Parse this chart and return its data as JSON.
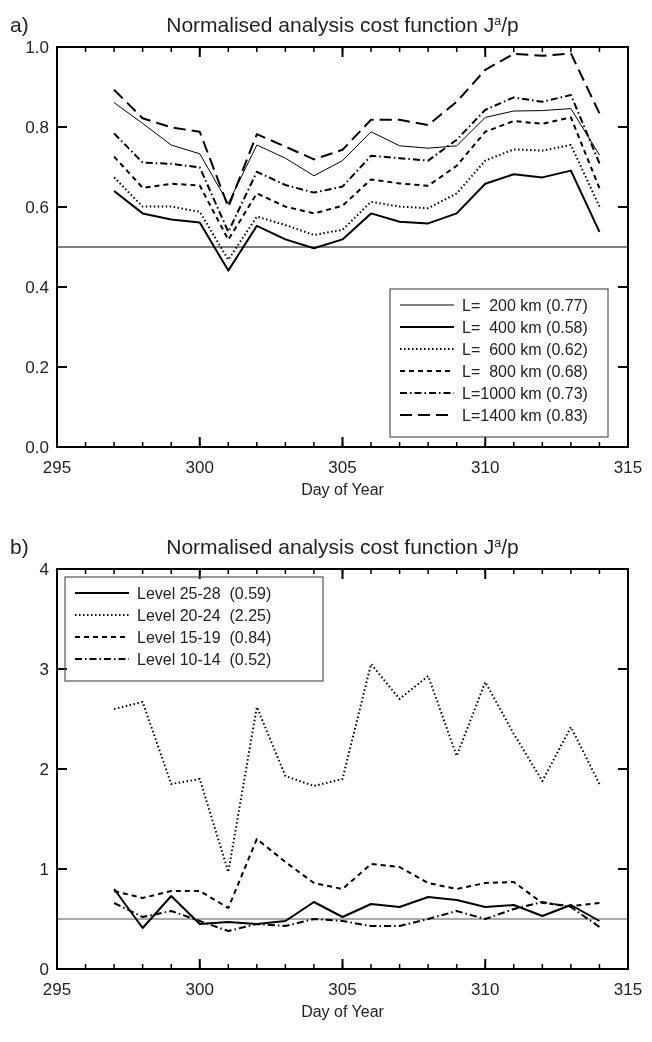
{
  "chart_data": [
    {
      "type": "line",
      "title": "Normalised analysis cost function J$^{a}$/p",
      "xlabel": "Day of Year",
      "annotations": [
        "a)"
      ],
      "x": [
        297,
        298,
        299,
        300,
        301,
        302,
        303,
        304,
        305,
        306,
        307,
        308,
        309,
        310,
        311,
        312,
        313,
        314
      ],
      "xlim": [
        295,
        315
      ],
      "xticks": [
        295,
        300,
        305,
        310,
        315
      ],
      "ylim": [
        0,
        1
      ],
      "yticks": [
        {
          "value": 0,
          "label": "0.0"
        },
        0.2,
        0.4,
        0.6,
        0.8,
        {
          "value": 1,
          "label": "1.0"
        }
      ],
      "ref_lines": [
        {
          "axis": "y",
          "value": 0.5,
          "color": "#000000"
        }
      ],
      "legend": "bottom right",
      "grid": false,
      "marker": "none",
      "series": [
        {
          "name": "L=  200 km (0.77)",
          "color": "#000000",
          "line_style": "solid",
          "values": [
            0.861,
            0.809,
            0.755,
            0.733,
            0.609,
            0.755,
            0.722,
            0.678,
            0.716,
            0.788,
            0.753,
            0.747,
            0.753,
            0.824,
            0.84,
            0.841,
            0.846,
            0.73
          ]
        },
        {
          "name": "L=  400 km (0.58)",
          "color": "#000000",
          "line_style": "solid",
          "values": [
            0.64,
            0.584,
            0.569,
            0.561,
            0.441,
            0.553,
            0.519,
            0.497,
            0.519,
            0.584,
            0.563,
            0.559,
            0.584,
            0.658,
            0.682,
            0.674,
            0.691,
            0.538
          ]
        },
        {
          "name": "L=  600 km (0.62)",
          "color": "#000000",
          "line_style": "dotted",
          "values": [
            0.674,
            0.601,
            0.601,
            0.588,
            0.468,
            0.576,
            0.555,
            0.53,
            0.543,
            0.613,
            0.601,
            0.597,
            0.634,
            0.716,
            0.744,
            0.741,
            0.755,
            0.601
          ]
        },
        {
          "name": "L=  800 km (0.68)",
          "color": "#000000",
          "line_style": "dashed",
          "values": [
            0.726,
            0.648,
            0.658,
            0.654,
            0.518,
            0.634,
            0.601,
            0.584,
            0.603,
            0.669,
            0.659,
            0.653,
            0.703,
            0.788,
            0.815,
            0.808,
            0.824,
            0.647
          ]
        },
        {
          "name": "L=1000 km (0.73)",
          "color": "#000000",
          "line_style": "dashdot",
          "values": [
            0.784,
            0.711,
            0.708,
            0.699,
            0.538,
            0.688,
            0.655,
            0.636,
            0.651,
            0.728,
            0.722,
            0.716,
            0.768,
            0.843,
            0.874,
            0.863,
            0.88,
            0.709
          ]
        },
        {
          "name": "L=1400 km (0.83)",
          "color": "#000000",
          "line_style": "longdash",
          "values": [
            0.893,
            0.822,
            0.799,
            0.788,
            0.6,
            0.782,
            0.751,
            0.719,
            0.743,
            0.818,
            0.818,
            0.805,
            0.863,
            0.943,
            0.983,
            0.978,
            0.984,
            0.834
          ]
        }
      ]
    },
    {
      "type": "line",
      "title": "Normalised analysis cost function J$^{a}$/p",
      "xlabel": "Day of Year",
      "annotations": [
        "b)"
      ],
      "x": [
        297,
        298,
        299,
        300,
        301,
        302,
        303,
        304,
        305,
        306,
        307,
        308,
        309,
        310,
        311,
        312,
        313,
        314
      ],
      "xlim": [
        295,
        315
      ],
      "xticks": [
        295,
        300,
        305,
        310,
        315
      ],
      "ylim": [
        0,
        4
      ],
      "yticks": [
        0,
        1,
        2,
        3,
        4
      ],
      "ref_lines": [
        {
          "axis": "y",
          "value": 0.5,
          "color": "#555555"
        }
      ],
      "legend": "top left",
      "grid": false,
      "marker": "none",
      "series": [
        {
          "name": "Level 25-28  (0.59)",
          "color": "#000000",
          "line_style": "solid",
          "values": [
            0.8,
            0.41,
            0.73,
            0.45,
            0.47,
            0.45,
            0.48,
            0.67,
            0.52,
            0.65,
            0.62,
            0.72,
            0.69,
            0.62,
            0.64,
            0.53,
            0.64,
            0.48
          ]
        },
        {
          "name": "Level 20-24  (2.25)",
          "color": "#000000",
          "line_style": "dotted",
          "values": [
            2.6,
            2.67,
            1.85,
            1.9,
            0.97,
            2.62,
            1.93,
            1.83,
            1.9,
            3.05,
            2.7,
            2.93,
            2.13,
            2.87,
            2.35,
            1.88,
            2.42,
            1.85
          ]
        },
        {
          "name": "Level 15-19  (0.84)",
          "color": "#000000",
          "line_style": "dashed",
          "values": [
            0.78,
            0.71,
            0.78,
            0.78,
            0.61,
            1.3,
            1.07,
            0.86,
            0.8,
            1.05,
            1.02,
            0.86,
            0.8,
            0.86,
            0.87,
            0.66,
            0.63,
            0.66
          ]
        },
        {
          "name": "Level 10-14  (0.52)",
          "color": "#000000",
          "line_style": "dashdot",
          "values": [
            0.66,
            0.52,
            0.58,
            0.48,
            0.38,
            0.45,
            0.43,
            0.5,
            0.48,
            0.43,
            0.43,
            0.5,
            0.58,
            0.5,
            0.6,
            0.67,
            0.62,
            0.42
          ]
        }
      ]
    }
  ]
}
